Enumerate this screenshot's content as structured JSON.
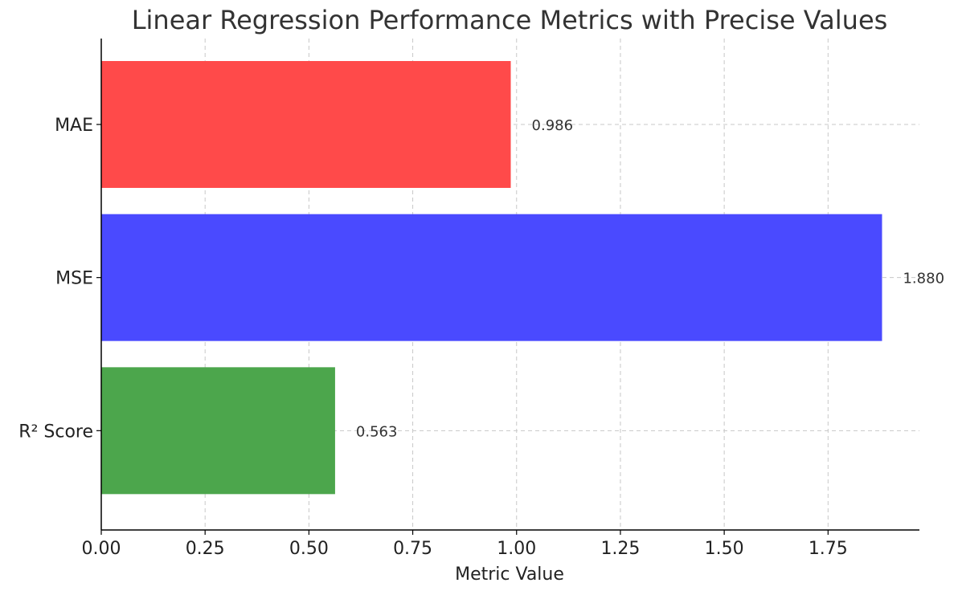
{
  "chart_data": {
    "type": "bar",
    "orientation": "horizontal",
    "title": "Linear Regression Performance Metrics with Precise Values",
    "xlabel": "Metric Value",
    "ylabel": "",
    "categories": [
      "MAE",
      "MSE",
      "R² Score"
    ],
    "values": [
      0.986,
      1.88,
      0.563
    ],
    "value_labels": [
      "0.986",
      "1.880",
      "0.563"
    ],
    "colors": [
      "#ff4a4a",
      "#4a4aff",
      "#4ca64c"
    ],
    "xlim": [
      0,
      1.97
    ],
    "xticks": [
      0.0,
      0.25,
      0.5,
      0.75,
      1.0,
      1.25,
      1.5,
      1.75
    ],
    "xtick_labels": [
      "0.00",
      "0.25",
      "0.50",
      "0.75",
      "1.00",
      "1.25",
      "1.50",
      "1.75"
    ],
    "grid": true
  }
}
